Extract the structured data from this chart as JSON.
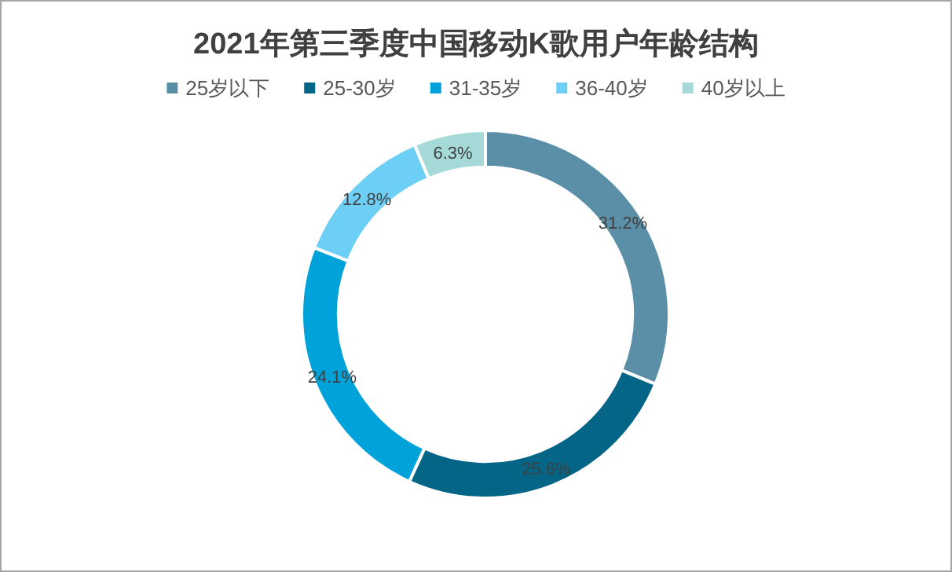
{
  "chart_data": {
    "type": "donut",
    "title": "2021年第三季度中国移动K歌用户年龄结构",
    "categories": [
      "25岁以下",
      "25-30岁",
      "31-35岁",
      "36-40岁",
      "40岁以上"
    ],
    "values": [
      31.2,
      25.6,
      24.1,
      12.8,
      6.3
    ],
    "colors": [
      "#5b8fa8",
      "#046587",
      "#00a3d9",
      "#6dcff6",
      "#a5dad8"
    ],
    "value_labels": [
      "31.2%",
      "25.6%",
      "24.1%",
      "12.8%",
      "6.3%"
    ],
    "legend": "top"
  }
}
